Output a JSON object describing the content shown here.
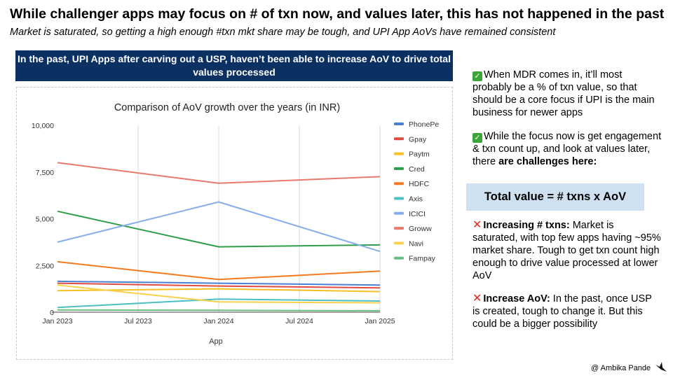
{
  "title": "While challenger apps may focus on # of txn now, and values later, this has not happened in the past",
  "subtitle": "Market is saturated, so getting a high enough #txn mkt share may be tough, and UPI App AoVs have remained consistent",
  "banner": "In the past, UPI Apps after carving out a USP, haven’t been able to increase AoV to drive total values processed",
  "right": {
    "p1": "When MDR comes in, it’ll most probably be a % of txn value, so that should be a core focus if UPI is the main business for newer apps",
    "p2_text": "While the focus now is get engagement & txn count up, and look at values later, there ",
    "p2_bold": "are challenges here:",
    "formula": "Total value = # txns x AoV",
    "p3_bold": "Increasing # txns:",
    "p3_text": " Market is saturated, with top few apps having ~95% market share. Tough to get txn count high enough to drive value processed at lower AoV",
    "p4_bold": "Increase AoV:",
    "p4_text": " In the past, once USP is created, tough to change it. But this could be a bigger possibility"
  },
  "footer": "@ Ambika Pande",
  "colors": {
    "banner_bg": "#0b3162",
    "formula_bg": "#cfe0f1",
    "check": "#3aa63a",
    "cross": "#e0261f"
  },
  "icons": {
    "check": "check-mark-icon",
    "cross": "cross-mark-icon",
    "logo": "bird-logo-icon"
  },
  "chart_data": {
    "type": "line",
    "title": "Comparison of AoV growth over the years (in INR)",
    "xlabel": "App",
    "ylabel": "",
    "x": [
      "Jan 2023",
      "Jan 2024",
      "Jan 2025"
    ],
    "x_ticks": [
      "Jan 2023",
      "Jul 2023",
      "Jan 2024",
      "Jul 2024",
      "Jan 2025"
    ],
    "y_ticks": [
      "0",
      "2,500",
      "5,000",
      "7,500",
      "10,000"
    ],
    "ylim": [
      0,
      10000
    ],
    "grid": "vertical",
    "legend_position": "right",
    "series": [
      {
        "name": "PhonePe",
        "color": "#4a7fd6",
        "values": [
          1650,
          1550,
          1450
        ]
      },
      {
        "name": "Gpay",
        "color": "#e24b3f",
        "values": [
          1550,
          1400,
          1300
        ]
      },
      {
        "name": "Paytm",
        "color": "#f5c023",
        "values": [
          1150,
          1250,
          1100
        ]
      },
      {
        "name": "Cred",
        "color": "#2e9e49",
        "values": [
          5400,
          3500,
          3600
        ]
      },
      {
        "name": "HDFC",
        "color": "#f47a20",
        "values": [
          2700,
          1750,
          2200
        ]
      },
      {
        "name": "Axis",
        "color": "#4dbfc2",
        "values": [
          250,
          700,
          600
        ]
      },
      {
        "name": "ICICI",
        "color": "#86aeea",
        "values": [
          3750,
          5900,
          3250
        ]
      },
      {
        "name": "Groww",
        "color": "#e8796f",
        "values": [
          8000,
          6900,
          7250
        ]
      },
      {
        "name": "Navi",
        "color": "#f8d24e",
        "values": [
          1450,
          550,
          500
        ]
      },
      {
        "name": "Fampay",
        "color": "#6bbf82",
        "values": [
          120,
          100,
          80
        ]
      }
    ]
  }
}
